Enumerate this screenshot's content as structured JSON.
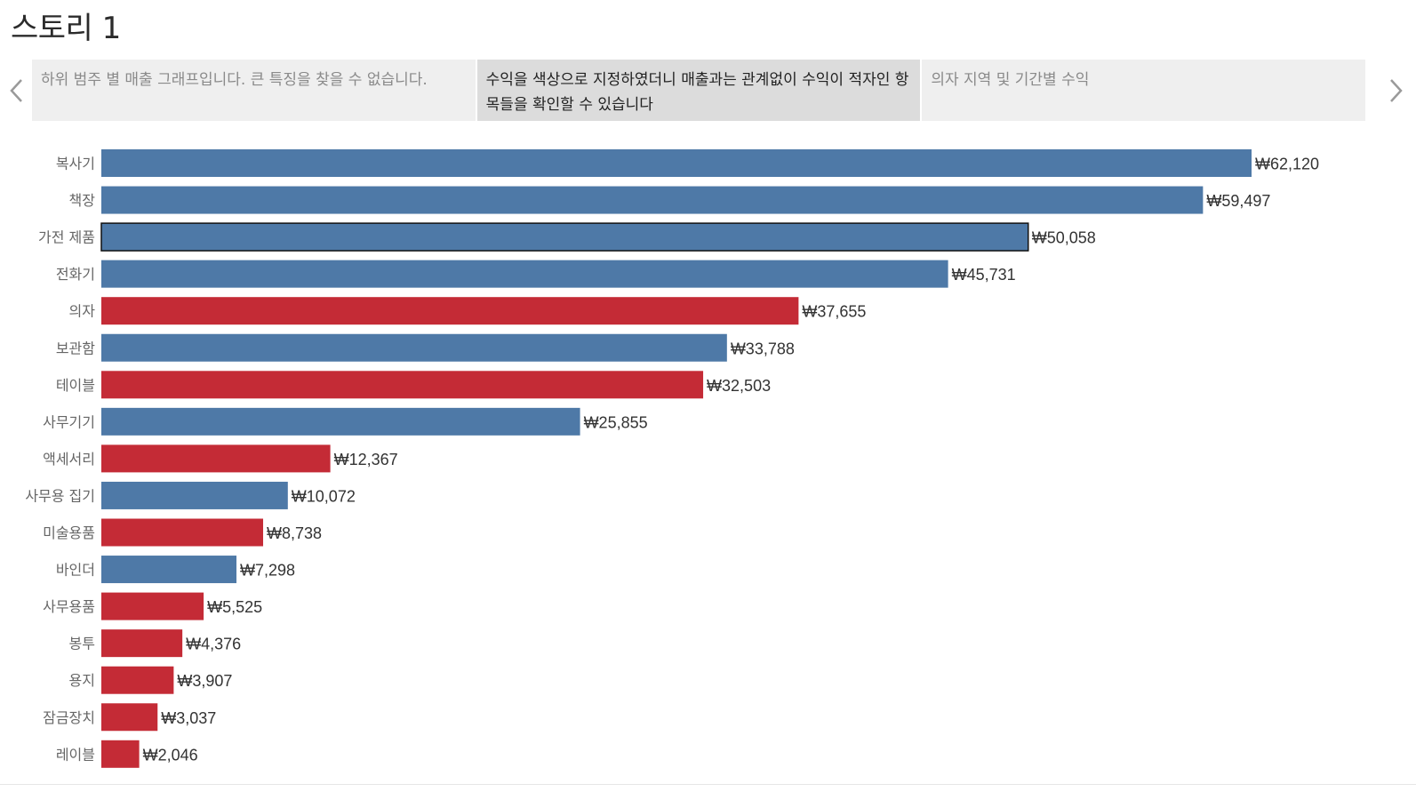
{
  "story": {
    "title": "스토리 1",
    "points": [
      "하위 범주 별 매출 그래프입니다. 큰 특징을 찾을 수 없습니다.",
      "수익을 색상으로 지정하였더니 매출과는 관계없이 수익이 적자인 항목들을 확인할 수 있습니다",
      "의자 지역 및 기간별 수익"
    ],
    "active_point": 1
  },
  "icons": {
    "prev": "chevron-left-icon",
    "next": "chevron-right-icon"
  },
  "colors": {
    "positive": "#4e79a7",
    "negative": "#c42b36",
    "selected_outline": "#111111"
  },
  "chart_data": {
    "type": "bar",
    "orientation": "horizontal",
    "categories": [
      "복사기",
      "책장",
      "가전 제품",
      "전화기",
      "의자",
      "보관함",
      "테이블",
      "사무기기",
      "액세서리",
      "사무용 집기",
      "미술용품",
      "바인더",
      "사무용품",
      "봉투",
      "용지",
      "잠금장치",
      "레이블"
    ],
    "values": [
      62120,
      59497,
      50058,
      45731,
      37655,
      33788,
      32503,
      25855,
      12367,
      10072,
      8738,
      7298,
      5525,
      4376,
      3907,
      3037,
      2046
    ],
    "labels": [
      "₩62,120",
      "₩59,497",
      "₩50,058",
      "₩45,731",
      "₩37,655",
      "₩33,788",
      "₩32,503",
      "₩25,855",
      "₩12,367",
      "₩10,072",
      "₩8,738",
      "₩7,298",
      "₩5,525",
      "₩4,376",
      "₩3,907",
      "₩3,037",
      "₩2,046"
    ],
    "profit_sign": [
      "positive",
      "positive",
      "positive",
      "positive",
      "negative",
      "positive",
      "negative",
      "positive",
      "negative",
      "positive",
      "negative",
      "positive",
      "negative",
      "negative",
      "negative",
      "negative",
      "negative"
    ],
    "selected_category": "가전 제품",
    "xlim": [
      0,
      62120
    ],
    "grid": false,
    "legend": "none"
  }
}
